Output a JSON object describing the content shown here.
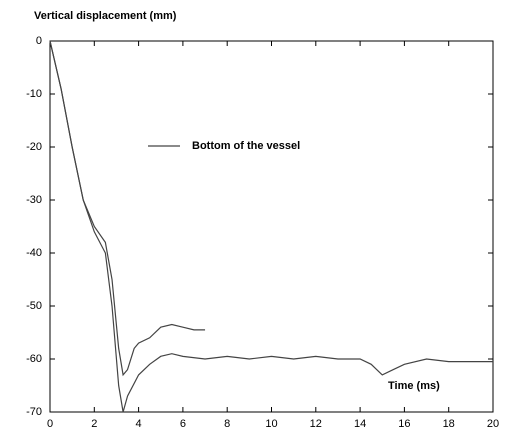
{
  "chart_data": {
    "type": "line",
    "ylabel": "Vertical displacement (mm)",
    "xlabel": "Time (ms)",
    "xlim": [
      0,
      20
    ],
    "xticks": [
      0,
      2,
      4,
      6,
      8,
      10,
      12,
      14,
      16,
      18,
      20
    ],
    "ylim": [
      -70,
      0
    ],
    "yticks": [
      0,
      -10,
      -20,
      -30,
      -40,
      -50,
      -60,
      -70
    ],
    "grid": false,
    "series": [
      {
        "name": "Bottom of the vessel",
        "color": "#444444",
        "x": [
          0,
          0.5,
          1,
          1.5,
          2,
          2.5,
          2.8,
          3.1,
          3.3,
          3.5,
          4,
          4.5,
          5,
          5.5,
          6,
          7,
          8,
          9,
          10,
          11,
          12,
          13,
          14,
          14.5,
          15,
          15.5,
          16,
          17,
          18,
          19,
          20
        ],
        "values": [
          0,
          -9,
          -20,
          -30,
          -36,
          -40,
          -50,
          -65,
          -70,
          -67,
          -63,
          -61,
          -59.5,
          -59,
          -59.5,
          -60,
          -59.5,
          -60,
          -59.5,
          -60,
          -59.5,
          -60,
          -60,
          -61,
          -63,
          -62,
          -61,
          -60,
          -60.5,
          -60.5,
          -60.5
        ]
      },
      {
        "color": "#444444",
        "x": [
          0,
          0.5,
          1,
          1.5,
          2,
          2.5,
          2.8,
          3.1,
          3.3,
          3.5,
          3.8,
          4,
          4.5,
          5,
          5.5,
          6,
          6.5,
          7
        ],
        "values": [
          0,
          -9,
          -20,
          -30,
          -35,
          -38,
          -45,
          -58,
          -63,
          -62,
          -58,
          -57,
          -56,
          -54,
          -53.5,
          -54,
          -54.5,
          -54.5
        ]
      }
    ]
  }
}
